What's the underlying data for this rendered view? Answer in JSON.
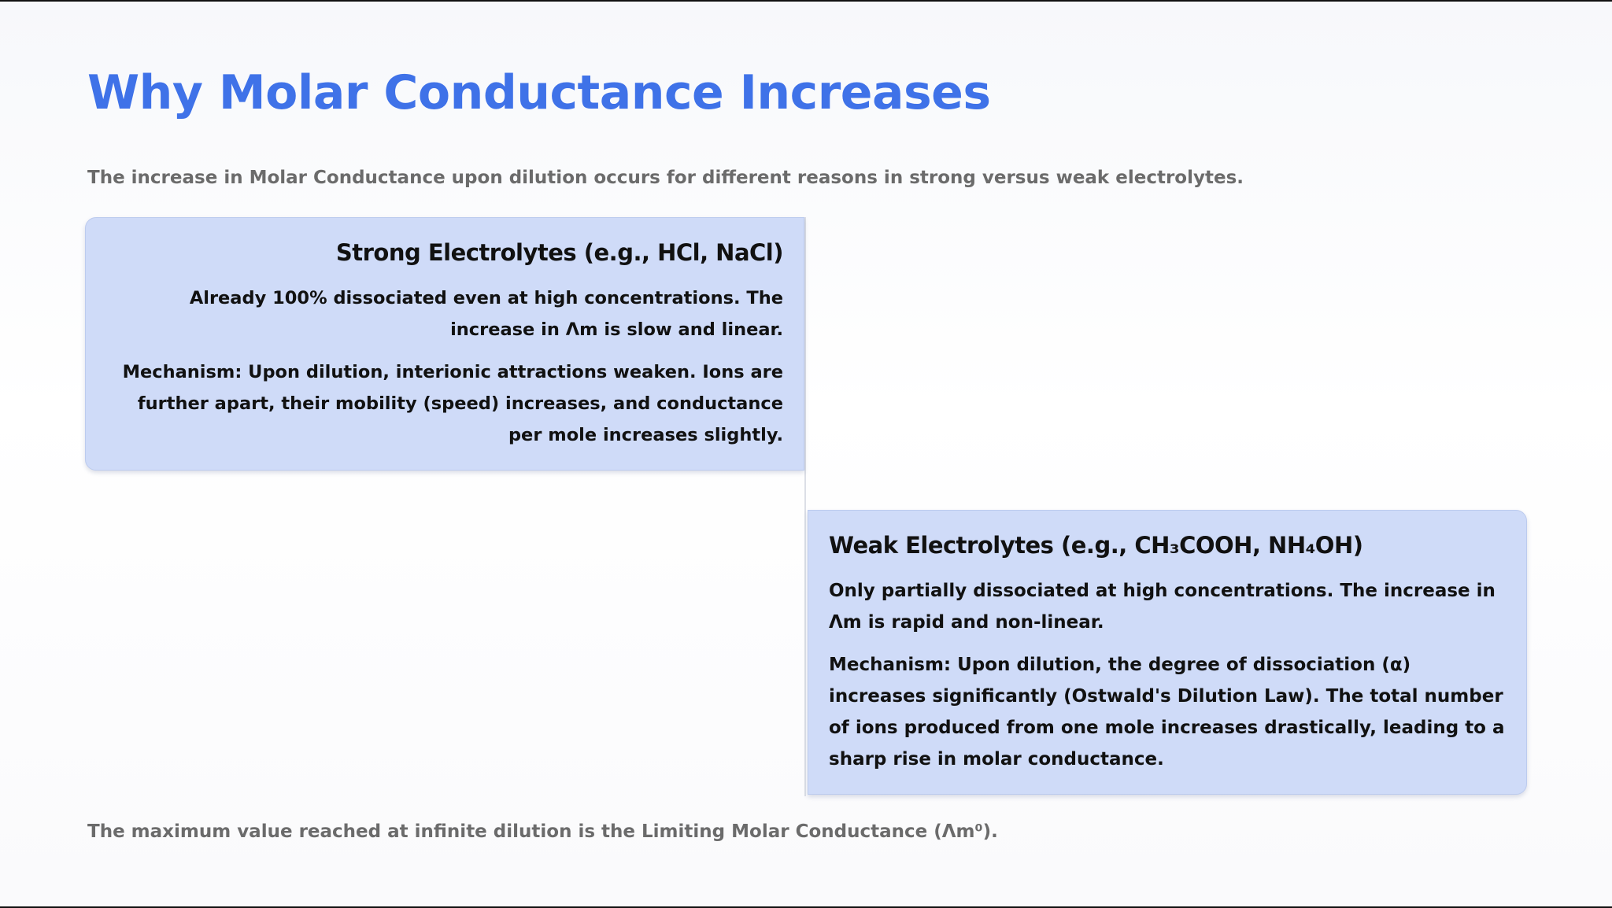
{
  "slide": {
    "title": "Why Molar Conductance Increases",
    "subtitle": "The increase in Molar Conductance upon dilution occurs for different reasons in strong versus weak electrolytes.",
    "footnote": "The maximum value reached at infinite dilution is the Limiting Molar Conductance (Λm⁰)."
  },
  "strong": {
    "title": "Strong Electrolytes (e.g., HCl, NaCl)",
    "paragraph1": "Already 100% dissociated even at high concentrations. The increase in Λm is slow and linear.",
    "paragraph2": "Mechanism: Upon dilution, interionic attractions weaken. Ions are further apart, their mobility (speed) increases, and conductance per mole increases slightly."
  },
  "weak": {
    "title": "Weak Electrolytes (e.g., CH₃COOH, NH₄OH)",
    "paragraph1": "Only partially dissociated at high concentrations. The increase in Λm is rapid and non-linear.",
    "paragraph2": "Mechanism: Upon dilution, the degree of dissociation (α) increases significantly (Ostwald's Dilution Law). The total number of ions produced from one mole increases drastically, leading to a sharp rise in molar conductance."
  },
  "colors": {
    "title": "#3f72e8",
    "card_background": "#cfdbf8",
    "muted_text": "#6b6b6b",
    "body_text": "#111111"
  }
}
